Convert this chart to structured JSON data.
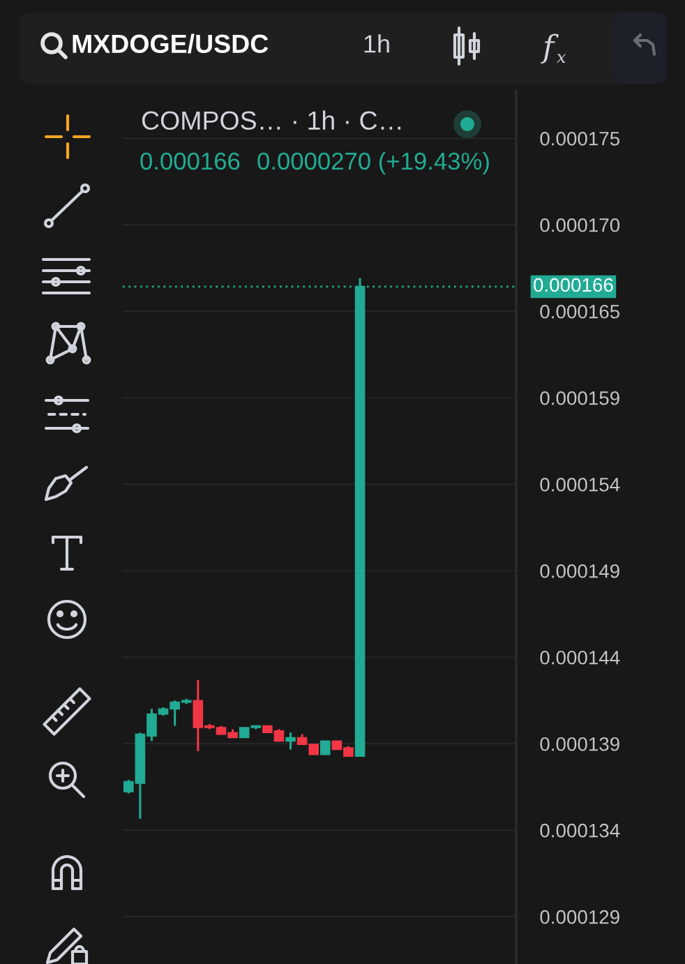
{
  "chart_data": {
    "type": "candlestick",
    "title": "MXDOGE/USDC",
    "annotations": [
      "1h",
      "COMPOS… · 1h · C…",
      "0.000166",
      "0.0000270 (+19.43%)"
    ],
    "categories": [
      null,
      null,
      null,
      null,
      null,
      null,
      null,
      null,
      null,
      null,
      null,
      null,
      null,
      null,
      null,
      null,
      null,
      null,
      null,
      null,
      null,
      null,
      null,
      null,
      null,
      null,
      null,
      null,
      null,
      null,
      null,
      null,
      null,
      null
    ],
    "ohlc": [
      [
        0.0001361,
        0.0001368,
        0.000136,
        0.0001367
      ],
      [
        0.0001366,
        0.0001396,
        0.0001345,
        0.0001395
      ],
      [
        0.0001394,
        0.000141,
        0.0001391,
        0.0001407
      ],
      [
        0.0001407,
        0.0001411,
        0.0001406,
        0.000141
      ],
      [
        0.000141,
        0.0001415,
        0.00014,
        0.0001414
      ],
      [
        0.0001414,
        0.0001416,
        0.0001413,
        0.0001415
      ],
      [
        0.0001415,
        0.0001427,
        0.0001385,
        0.0001399
      ],
      [
        0.00014,
        0.0001401,
        0.0001398,
        0.0001399
      ],
      [
        0.0001399,
        0.00014,
        0.0001395,
        0.0001395
      ],
      [
        0.0001396,
        0.0001398,
        0.0001393,
        0.0001393
      ],
      [
        0.0001393,
        0.0001399,
        0.0001393,
        0.0001399
      ],
      [
        0.0001399,
        0.00014,
        0.0001398,
        0.00014
      ],
      [
        0.00014,
        0.00014,
        0.0001396,
        0.0001396
      ],
      [
        0.0001397,
        0.0001398,
        0.0001391,
        0.0001391
      ],
      [
        0.0001391,
        0.0001396,
        0.0001386,
        0.0001393
      ],
      [
        0.0001393,
        0.0001395,
        0.0001389,
        0.0001389
      ],
      [
        0.0001389,
        0.0001389,
        0.0001383,
        0.0001383
      ],
      [
        0.0001383,
        0.0001391,
        0.0001383,
        0.0001391
      ],
      [
        0.0001391,
        0.0001391,
        0.0001386,
        0.0001386
      ],
      [
        0.0001387,
        0.0001388,
        0.0001382,
        0.0001382
      ],
      [
        0.0001382,
        0.0001665,
        0.0001382,
        0.000166
      ],
      null,
      null,
      null,
      null,
      null,
      null,
      null,
      null,
      null,
      null,
      null,
      null,
      null
    ],
    "colors": [
      "#22ab94",
      "#22ab94",
      "#22ab94",
      "#22ab94",
      "#22ab94",
      "#22ab94",
      "#f23645",
      "#f23645",
      "#f23645",
      "#f23645",
      "#22ab94",
      "#22ab94",
      "#f23645",
      "#f23645",
      "#22ab94",
      "#f23645",
      "#f23645",
      "#22ab94",
      "#f23645",
      "#f23645",
      "#22ab94",
      null,
      null,
      null,
      null,
      null,
      null,
      null,
      null,
      null,
      null,
      null,
      null,
      null
    ],
    "ylim": [
      0.0001259,
      0.0001776
    ],
    "yticks": [
      {
        "value": 0.0001287,
        "label": "0.000129"
      },
      {
        "value": 0.00013382,
        "label": "0.000134"
      },
      {
        "value": 0.00013894,
        "label": "0.000139"
      },
      {
        "value": 0.00014406,
        "label": "0.000144"
      },
      {
        "value": 0.00014918,
        "label": "0.000149"
      },
      {
        "value": 0.0001543,
        "label": "0.000154"
      },
      {
        "value": 0.00015942,
        "label": "0.000159"
      },
      {
        "value": 0.00016454,
        "label": "0.000165"
      },
      {
        "value": 0.00016966,
        "label": "0.000170"
      },
      {
        "value": 0.00017478,
        "label": "0.000175"
      }
    ],
    "ref_lines": [
      {
        "axis": "y",
        "value": 0.000166,
        "label": "0.000166",
        "color": "#22ab94",
        "line_style": "dotted"
      }
    ],
    "grid": "y",
    "tick_labels": "y"
  }
}
